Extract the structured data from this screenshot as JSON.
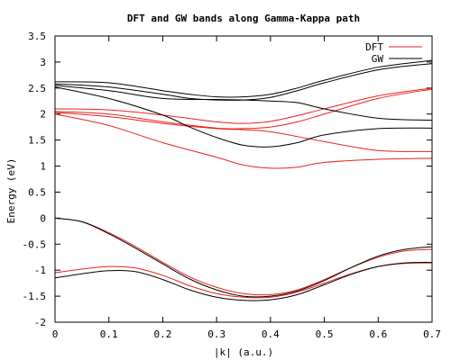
{
  "chart_data": {
    "type": "line",
    "title": "DFT and GW bands along Gamma-Kappa path",
    "xlabel": "|k| (a.u.)",
    "ylabel": "Energy (eV)",
    "xlim": [
      0,
      0.7
    ],
    "ylim": [
      -2,
      3.5
    ],
    "xticks": [
      0,
      0.1,
      0.2,
      0.3,
      0.4,
      0.5,
      0.6,
      0.7
    ],
    "xtick_labels": [
      "0",
      "0.1",
      "0.2",
      "0.3",
      "0.4",
      "0.5",
      "0.6",
      "0.7"
    ],
    "yticks": [
      -2,
      -1.5,
      -1,
      -0.5,
      0,
      0.5,
      1,
      1.5,
      2,
      2.5,
      3,
      3.5
    ],
    "ytick_labels": [
      "-2",
      "-1.5",
      "-1",
      "-0.5",
      "0",
      "0.5",
      "1",
      "1.5",
      "2",
      "2.5",
      "3",
      "3.5"
    ],
    "grid": false,
    "legend": {
      "position": "top-right"
    },
    "colors": {
      "DFT": "#e8221b",
      "GW": "#000000"
    },
    "series": [
      {
        "name": "DFT",
        "color": "#e8221b",
        "bands": [
          {
            "x": [
              0,
              0.1,
              0.2,
              0.3,
              0.35,
              0.4,
              0.45,
              0.5,
              0.6,
              0.7
            ],
            "y": [
              2.1,
              2.08,
              1.98,
              1.85,
              1.82,
              1.86,
              1.97,
              2.1,
              2.35,
              2.5
            ]
          },
          {
            "x": [
              0,
              0.1,
              0.2,
              0.3,
              0.35,
              0.4,
              0.45,
              0.5,
              0.6,
              0.7
            ],
            "y": [
              2.05,
              2.0,
              1.85,
              1.73,
              1.72,
              1.75,
              1.85,
              2.0,
              2.3,
              2.48
            ]
          },
          {
            "x": [
              0,
              0.1,
              0.2,
              0.3,
              0.35,
              0.4,
              0.5,
              0.6,
              0.7
            ],
            "y": [
              2.03,
              1.95,
              1.82,
              1.72,
              1.7,
              1.66,
              1.47,
              1.3,
              1.28
            ]
          },
          {
            "x": [
              0,
              0.1,
              0.2,
              0.3,
              0.35,
              0.4,
              0.45,
              0.5,
              0.6,
              0.7
            ],
            "y": [
              2.0,
              1.78,
              1.45,
              1.17,
              1.02,
              0.96,
              0.98,
              1.07,
              1.13,
              1.15
            ]
          },
          {
            "x": [
              0,
              0.05,
              0.1,
              0.15,
              0.2,
              0.25,
              0.3,
              0.35,
              0.4,
              0.45,
              0.5,
              0.55,
              0.6,
              0.65,
              0.7
            ],
            "y": [
              0,
              -0.07,
              -0.28,
              -0.55,
              -0.85,
              -1.13,
              -1.33,
              -1.45,
              -1.47,
              -1.38,
              -1.18,
              -0.95,
              -0.75,
              -0.63,
              -0.6
            ]
          },
          {
            "x": [
              0,
              0.05,
              0.1,
              0.15,
              0.2,
              0.25,
              0.3,
              0.35,
              0.4,
              0.45,
              0.5,
              0.55,
              0.6,
              0.65,
              0.7
            ],
            "y": [
              -1.05,
              -0.98,
              -0.93,
              -0.96,
              -1.1,
              -1.3,
              -1.45,
              -1.52,
              -1.52,
              -1.42,
              -1.25,
              -1.07,
              -0.93,
              -0.87,
              -0.86
            ]
          }
        ]
      },
      {
        "name": "GW",
        "color": "#000000",
        "bands": [
          {
            "x": [
              0,
              0.1,
              0.2,
              0.25,
              0.3,
              0.35,
              0.4,
              0.45,
              0.5,
              0.6,
              0.7
            ],
            "y": [
              2.62,
              2.6,
              2.45,
              2.38,
              2.33,
              2.33,
              2.38,
              2.5,
              2.65,
              2.9,
              3.03
            ]
          },
          {
            "x": [
              0,
              0.1,
              0.2,
              0.25,
              0.3,
              0.35,
              0.4,
              0.45,
              0.5,
              0.6,
              0.7
            ],
            "y": [
              2.58,
              2.52,
              2.38,
              2.3,
              2.27,
              2.27,
              2.32,
              2.45,
              2.6,
              2.85,
              2.97
            ]
          },
          {
            "x": [
              0,
              0.1,
              0.2,
              0.3,
              0.35,
              0.4,
              0.45,
              0.5,
              0.6,
              0.7
            ],
            "y": [
              2.55,
              2.45,
              2.3,
              2.28,
              2.27,
              2.25,
              2.22,
              2.1,
              1.92,
              1.88
            ]
          },
          {
            "x": [
              0,
              0.1,
              0.2,
              0.25,
              0.3,
              0.35,
              0.4,
              0.45,
              0.5,
              0.6,
              0.7
            ],
            "y": [
              2.52,
              2.3,
              1.98,
              1.75,
              1.55,
              1.4,
              1.37,
              1.45,
              1.6,
              1.72,
              1.73
            ]
          },
          {
            "x": [
              0,
              0.05,
              0.1,
              0.15,
              0.2,
              0.25,
              0.3,
              0.35,
              0.4,
              0.45,
              0.5,
              0.55,
              0.6,
              0.65,
              0.7
            ],
            "y": [
              0,
              -0.07,
              -0.3,
              -0.58,
              -0.88,
              -1.17,
              -1.38,
              -1.5,
              -1.5,
              -1.4,
              -1.2,
              -0.95,
              -0.73,
              -0.6,
              -0.55
            ]
          },
          {
            "x": [
              0,
              0.05,
              0.1,
              0.15,
              0.2,
              0.25,
              0.3,
              0.35,
              0.4,
              0.45,
              0.5,
              0.55,
              0.6,
              0.65,
              0.7
            ],
            "y": [
              -1.15,
              -1.07,
              -1.01,
              -1.03,
              -1.18,
              -1.38,
              -1.52,
              -1.58,
              -1.57,
              -1.47,
              -1.28,
              -1.08,
              -0.93,
              -0.86,
              -0.85
            ]
          }
        ]
      }
    ]
  }
}
